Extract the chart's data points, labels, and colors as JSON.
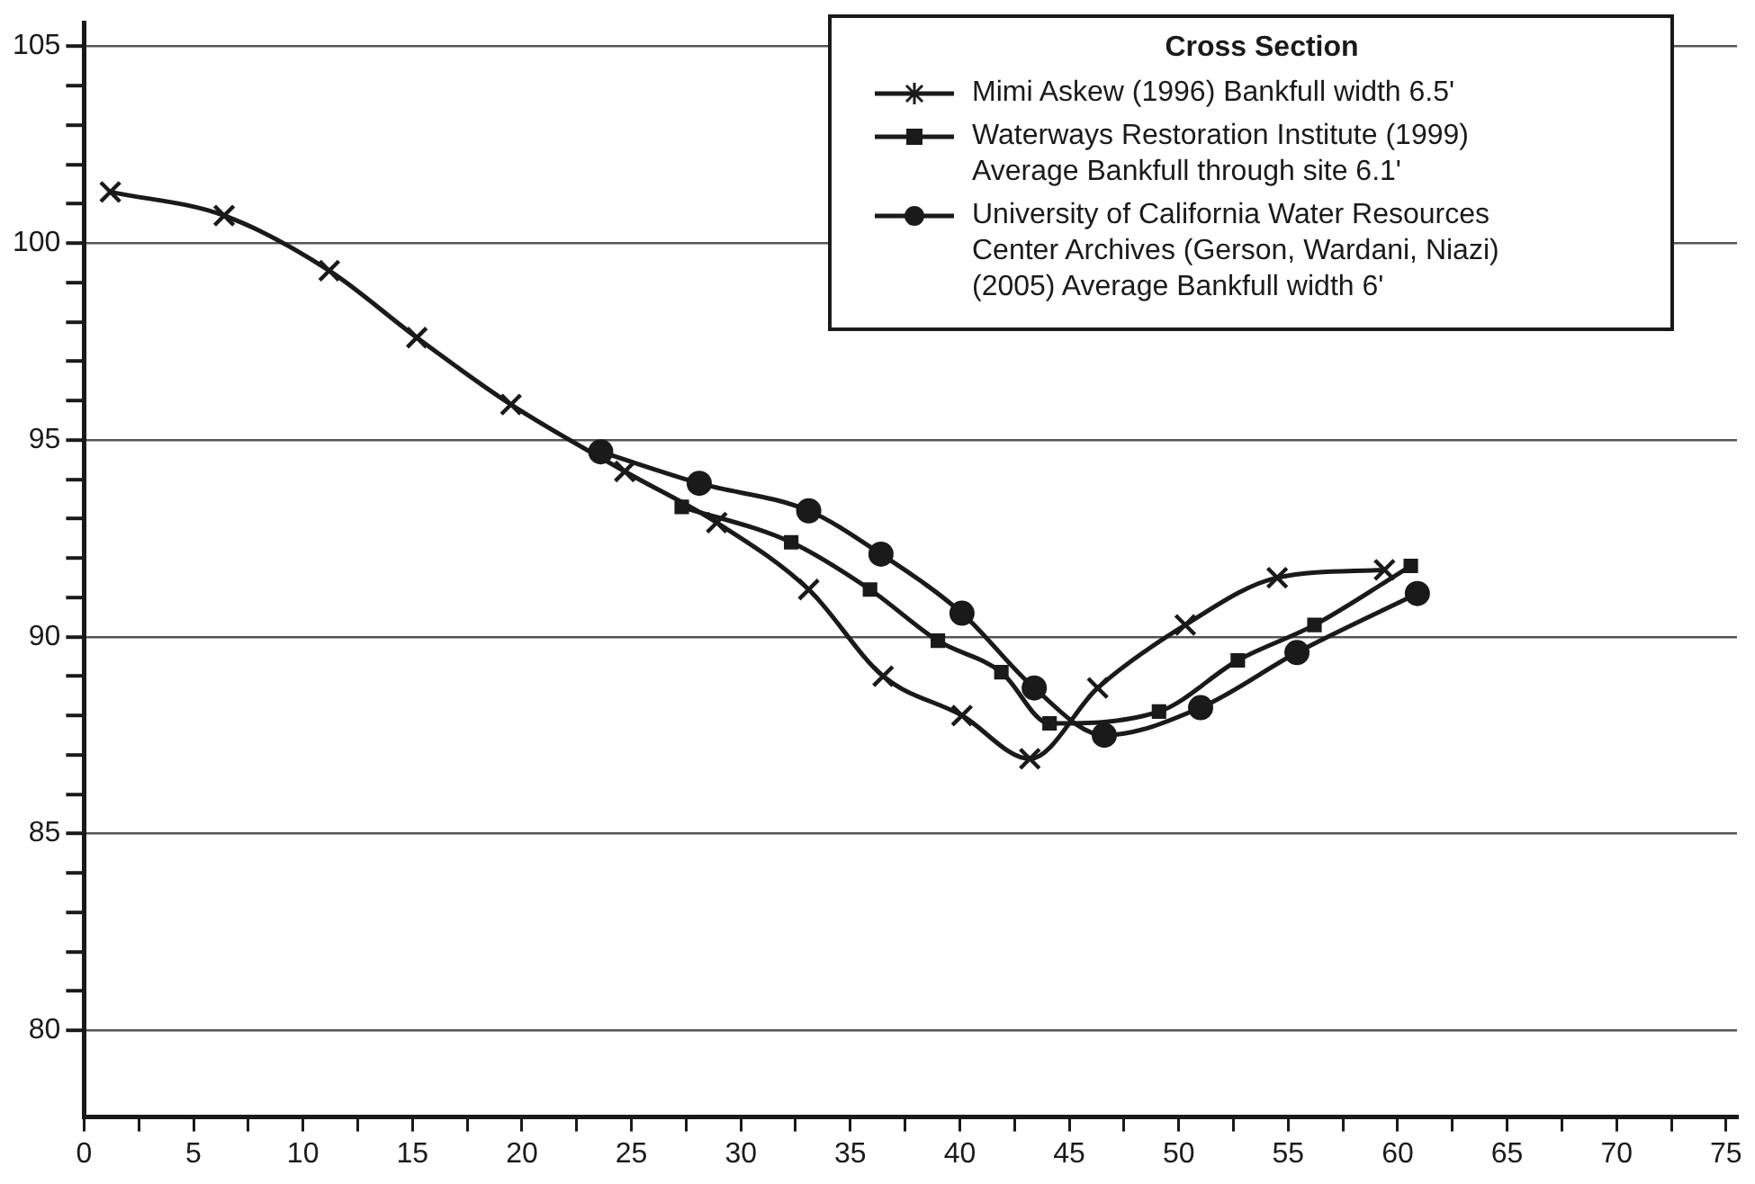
{
  "chart_data": {
    "type": "line",
    "legend_title": "Cross Section",
    "legend": "top right",
    "grid": "y",
    "line_style": "solid",
    "xlim": [
      0,
      75.5
    ],
    "ylim": [
      77.8,
      105.6
    ],
    "xticks": [
      0,
      {
        "value": 2.5,
        "label": null
      },
      5,
      {
        "value": 7.5,
        "label": null
      },
      10,
      {
        "value": 12.5,
        "label": null
      },
      15,
      {
        "value": 17.5,
        "label": null
      },
      20,
      {
        "value": 22.5,
        "label": null
      },
      25,
      {
        "value": 27.5,
        "label": null
      },
      30,
      {
        "value": 32.5,
        "label": null
      },
      35,
      {
        "value": 37.5,
        "label": null
      },
      40,
      {
        "value": 42.5,
        "label": null
      },
      45,
      {
        "value": 47.5,
        "label": null
      },
      50,
      {
        "value": 52.5,
        "label": null
      },
      55,
      {
        "value": 57.5,
        "label": null
      },
      60,
      {
        "value": 62.5,
        "label": null
      },
      65,
      {
        "value": 67.5,
        "label": null
      },
      70,
      {
        "value": 72.5,
        "label": null
      },
      75
    ],
    "yticks": [
      80,
      {
        "value": 81,
        "label": null
      },
      {
        "value": 82,
        "label": null
      },
      {
        "value": 83,
        "label": null
      },
      {
        "value": 84,
        "label": null
      },
      85,
      {
        "value": 86,
        "label": null
      },
      {
        "value": 87,
        "label": null
      },
      {
        "value": 88,
        "label": null
      },
      {
        "value": 89,
        "label": null
      },
      90,
      {
        "value": 91,
        "label": null
      },
      {
        "value": 92,
        "label": null
      },
      {
        "value": 93,
        "label": null
      },
      {
        "value": 94,
        "label": null
      },
      95,
      {
        "value": 96,
        "label": null
      },
      {
        "value": 97,
        "label": null
      },
      {
        "value": 98,
        "label": null
      },
      {
        "value": 99,
        "label": null
      },
      100,
      {
        "value": 101,
        "label": null
      },
      {
        "value": 102,
        "label": null
      },
      {
        "value": 103,
        "label": null
      },
      {
        "value": 104,
        "label": null
      },
      105
    ],
    "series": [
      {
        "name": "Mimi Askew (1996) Bankfull width 6.5'",
        "color": "#1a1a1a",
        "marker": "cross",
        "x": [
          1.2,
          6.4,
          11.2,
          15.2,
          19.5,
          24.7,
          28.9,
          33.1,
          36.5,
          40.1,
          43.2,
          46.3,
          50.3,
          54.5,
          59.4
        ],
        "values": [
          101.3,
          100.7,
          99.3,
          97.6,
          95.9,
          94.2,
          92.9,
          91.2,
          89.0,
          88.0,
          86.9,
          88.7,
          90.3,
          91.5,
          91.7
        ]
      },
      {
        "name": "Waterways Restoration Institute (1999) Average Bankfull through site 6.1'",
        "color": "#1a1a1a",
        "marker": "square",
        "x": [
          27.3,
          32.3,
          35.9,
          39.0,
          41.9,
          44.1,
          49.1,
          52.7,
          56.2,
          60.6
        ],
        "values": [
          93.3,
          92.4,
          91.2,
          89.9,
          89.1,
          87.8,
          88.1,
          89.4,
          90.3,
          91.8
        ]
      },
      {
        "name": "University of California Water Resources Center Archives (Gerson, Wardani, Niazi) (2005) Average Bankfull width 6'",
        "color": "#1a1a1a",
        "marker": "circle",
        "x": [
          23.6,
          28.1,
          33.1,
          36.4,
          40.1,
          43.4,
          46.6,
          51.0,
          55.4,
          60.9
        ],
        "values": [
          94.7,
          93.9,
          93.2,
          92.1,
          90.6,
          88.7,
          87.5,
          88.2,
          89.6,
          91.1
        ]
      }
    ]
  }
}
